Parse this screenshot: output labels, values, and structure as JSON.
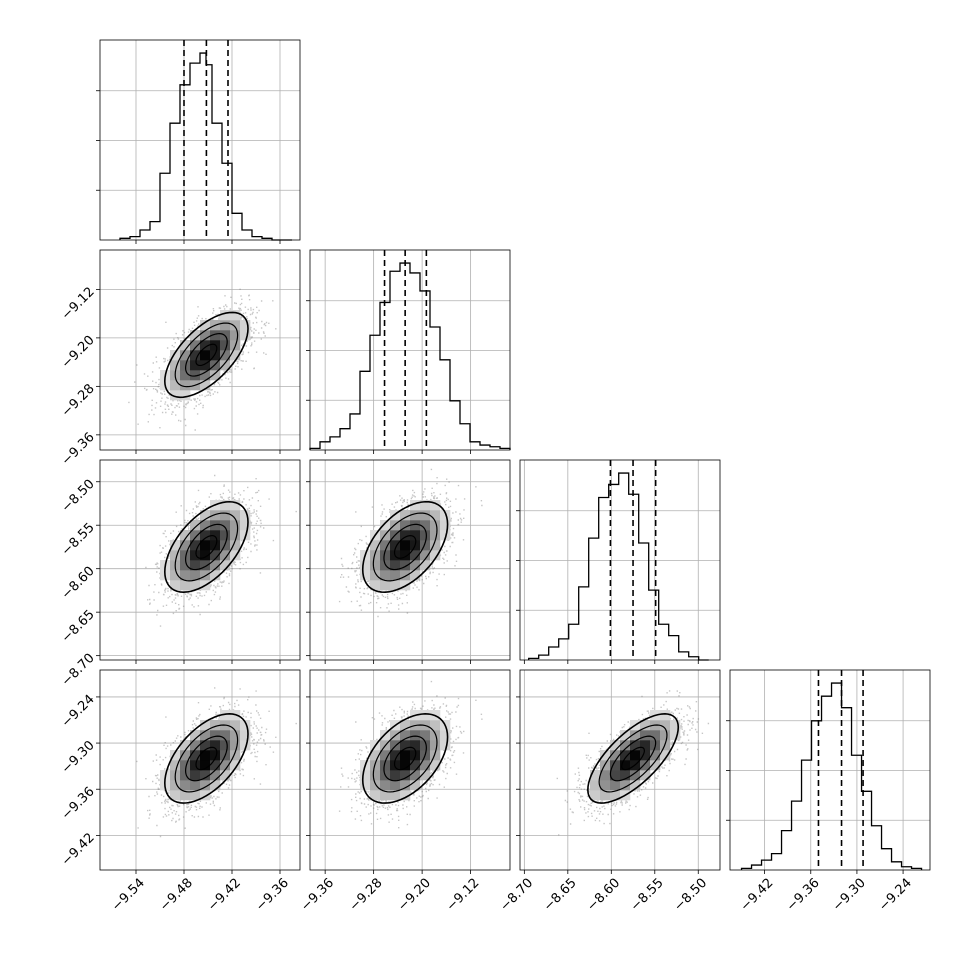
{
  "chart_data": {
    "type": "corner",
    "grid": true,
    "parameters": [
      {
        "range": [
          -9.585,
          -9.335
        ],
        "ticks": [
          -9.54,
          -9.48,
          -9.42,
          -9.36
        ],
        "tick_labels": [
          "−9.54",
          "−9.48",
          "−9.42",
          "−9.36"
        ],
        "quantiles": [
          -9.48,
          -9.452,
          -9.425
        ],
        "hist_edges": [
          -9.56,
          -9.5475,
          -9.535,
          -9.5225,
          -9.51,
          -9.4975,
          -9.485,
          -9.4725,
          -9.46,
          -9.4525,
          -9.445,
          -9.4325,
          -9.42,
          -9.4075,
          -9.395,
          -9.3825,
          -9.37,
          -9.3575,
          -9.345
        ],
        "hist_counts": [
          1,
          2,
          6,
          11,
          40,
          70,
          93,
          106,
          112,
          105,
          70,
          46,
          16,
          6,
          2,
          1,
          0,
          0
        ]
      },
      {
        "range": [
          -9.385,
          -9.055
        ],
        "ticks": [
          -9.36,
          -9.28,
          -9.2,
          -9.12
        ],
        "tick_labels": [
          "−9.36",
          "−9.28",
          "−9.20",
          "−9.12"
        ],
        "quantiles": [
          -9.262,
          -9.228,
          -9.193
        ],
        "hist_edges": [
          -9.385,
          -9.3685,
          -9.352,
          -9.3355,
          -9.319,
          -9.3025,
          -9.286,
          -9.2695,
          -9.253,
          -9.2365,
          -9.22,
          -9.2035,
          -9.187,
          -9.1705,
          -9.154,
          -9.1375,
          -9.121,
          -9.1045,
          -9.088,
          -9.0715,
          -9.055
        ],
        "hist_counts": [
          1,
          5,
          8,
          13,
          22,
          48,
          70,
          90,
          109,
          114,
          108,
          97,
          75,
          55,
          30,
          16,
          5,
          3,
          2,
          1
        ]
      },
      {
        "range": [
          -8.705,
          -8.475
        ],
        "ticks": [
          -8.7,
          -8.65,
          -8.6,
          -8.55,
          -8.5
        ],
        "tick_labels": [
          "−8.70",
          "−8.65",
          "−8.60",
          "−8.55",
          "−8.50"
        ],
        "quantiles": [
          -8.601,
          -8.575,
          -8.549
        ],
        "hist_edges": [
          -8.695,
          -8.6835,
          -8.672,
          -8.6605,
          -8.649,
          -8.6375,
          -8.626,
          -8.6145,
          -8.603,
          -8.5915,
          -8.58,
          -8.5685,
          -8.557,
          -8.5455,
          -8.534,
          -8.5225,
          -8.511,
          -8.4995,
          -8.488
        ],
        "hist_counts": [
          1,
          3,
          8,
          13,
          22,
          45,
          75,
          100,
          108,
          115,
          102,
          72,
          43,
          22,
          15,
          5,
          2,
          0
        ]
      },
      {
        "range": [
          -9.465,
          -9.205
        ],
        "ticks": [
          -9.42,
          -9.36,
          -9.3,
          -9.24
        ],
        "tick_labels": [
          "−9.42",
          "−9.36",
          "−9.30",
          "−9.24"
        ],
        "quantiles": [
          -9.35,
          -9.32,
          -9.292
        ],
        "hist_edges": [
          -9.45,
          -9.437,
          -9.424,
          -9.411,
          -9.398,
          -9.385,
          -9.372,
          -9.359,
          -9.346,
          -9.333,
          -9.32,
          -9.307,
          -9.294,
          -9.281,
          -9.268,
          -9.255,
          -9.242,
          -9.229,
          -9.216
        ],
        "hist_counts": [
          1,
          3,
          6,
          10,
          24,
          42,
          67,
          91,
          106,
          114,
          99,
          70,
          48,
          27,
          13,
          5,
          2,
          1
        ]
      }
    ],
    "joint": [
      {
        "row": 1,
        "col": 0,
        "mean": [
          -9.452,
          -9.228
        ],
        "sd": [
          0.026,
          0.035
        ],
        "rho": 0.62
      },
      {
        "row": 2,
        "col": 0,
        "mean": [
          -9.452,
          -8.575
        ],
        "sd": [
          0.026,
          0.026
        ],
        "rho": 0.55
      },
      {
        "row": 2,
        "col": 1,
        "mean": [
          -9.228,
          -8.575
        ],
        "sd": [
          0.035,
          0.026
        ],
        "rho": 0.5
      },
      {
        "row": 3,
        "col": 0,
        "mean": [
          -9.452,
          -9.32
        ],
        "sd": [
          0.026,
          0.029
        ],
        "rho": 0.55
      },
      {
        "row": 3,
        "col": 1,
        "mean": [
          -9.228,
          -9.32
        ],
        "sd": [
          0.035,
          0.029
        ],
        "rho": 0.48
      },
      {
        "row": 3,
        "col": 2,
        "mean": [
          -8.575,
          -9.32
        ],
        "sd": [
          0.026,
          0.029
        ],
        "rho": 0.7
      }
    ],
    "contour_levels_sigma": [
      0.5,
      1.0,
      1.5,
      2.0
    ],
    "colors": {
      "line": "#000000",
      "grid": "#b0b0b0",
      "scatter": "#808080"
    }
  }
}
